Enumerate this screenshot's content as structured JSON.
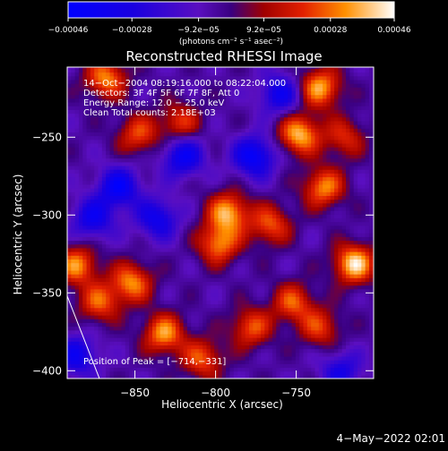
{
  "chart_data": {
    "type": "heatmap",
    "title": "Reconstructed RHESSI Image",
    "xlabel": "Heliocentric X (arcsec)",
    "ylabel": "Heliocentric Y (arcsec)",
    "xlim": [
      -892,
      -702
    ],
    "ylim": [
      -405,
      -205
    ],
    "x_ticks": [
      {
        "value": -850,
        "label": "−850"
      },
      {
        "value": -800,
        "label": "−800"
      },
      {
        "value": -750,
        "label": "−750"
      }
    ],
    "y_ticks": [
      {
        "value": -250,
        "label": "−250"
      },
      {
        "value": -300,
        "label": "−300"
      },
      {
        "value": -350,
        "label": "−350"
      },
      {
        "value": -400,
        "label": "−400"
      }
    ],
    "annotations": [
      "14−Oct−2004 08:19:16.000 to 08:22:04.000",
      "Detectors: 3F 4F 5F 6F 7F 8F, Att 0",
      "Energy Range: 12.0 − 25.0 keV",
      "Clean     Total counts: 2.18E+03"
    ],
    "peak_label": "Position of Peak = [−714,−331]",
    "peak_position": [
      -714,
      -331
    ],
    "colorbar": {
      "min": -0.00046,
      "max": 0.00046,
      "ticks": [
        {
          "value": -0.00046,
          "label": "−0.00046"
        },
        {
          "value": -0.00028,
          "label": "−0.00028"
        },
        {
          "value": -9.2e-05,
          "label": "−9.2e−05"
        },
        {
          "value": 9.2e-05,
          "label": "9.2e−05"
        },
        {
          "value": 0.00028,
          "label": "0.00028"
        },
        {
          "value": 0.00046,
          "label": "0.00046"
        }
      ],
      "units_label": "(photons cm⁻² s⁻¹ asec⁻²)"
    },
    "grid": false,
    "bright_sources": [
      {
        "x": -714,
        "y": -331,
        "value": 0.00046
      },
      {
        "x": -735,
        "y": -218,
        "value": 0.0004
      },
      {
        "x": -748,
        "y": -248,
        "value": 0.00042
      },
      {
        "x": -733,
        "y": -282,
        "value": 0.00036
      },
      {
        "x": -792,
        "y": -298,
        "value": 0.0004
      },
      {
        "x": -798,
        "y": -318,
        "value": 0.00036
      },
      {
        "x": -766,
        "y": -306,
        "value": 0.0003
      },
      {
        "x": -852,
        "y": -343,
        "value": 0.00036
      },
      {
        "x": -872,
        "y": -356,
        "value": 0.0003
      },
      {
        "x": -832,
        "y": -376,
        "value": 0.00038
      },
      {
        "x": -808,
        "y": -392,
        "value": 0.0003
      },
      {
        "x": -778,
        "y": -372,
        "value": 0.0003
      },
      {
        "x": -848,
        "y": -248,
        "value": 0.00028
      },
      {
        "x": -822,
        "y": -240,
        "value": 0.00026
      },
      {
        "x": -868,
        "y": -212,
        "value": 0.00036
      },
      {
        "x": -886,
        "y": -332,
        "value": 0.00036
      },
      {
        "x": -752,
        "y": -356,
        "value": 0.0003
      },
      {
        "x": -735,
        "y": -372,
        "value": 0.00026
      },
      {
        "x": -720,
        "y": -250,
        "value": 0.00024
      }
    ],
    "dim_sources": [
      {
        "x": -820,
        "y": -262,
        "value": -0.00034
      },
      {
        "x": -860,
        "y": -282,
        "value": -0.00036
      },
      {
        "x": -776,
        "y": -262,
        "value": -0.00038
      },
      {
        "x": -760,
        "y": -222,
        "value": -0.0003
      },
      {
        "x": -836,
        "y": -302,
        "value": -0.0003
      },
      {
        "x": -876,
        "y": -302,
        "value": -0.0003
      },
      {
        "x": -886,
        "y": -390,
        "value": -0.0003
      },
      {
        "x": -722,
        "y": -400,
        "value": -0.00024
      }
    ],
    "limb_line": [
      [
        -892,
        -352
      ],
      [
        -872,
        -405
      ]
    ]
  },
  "footer": {
    "date": "4−May−2022 02:01"
  }
}
